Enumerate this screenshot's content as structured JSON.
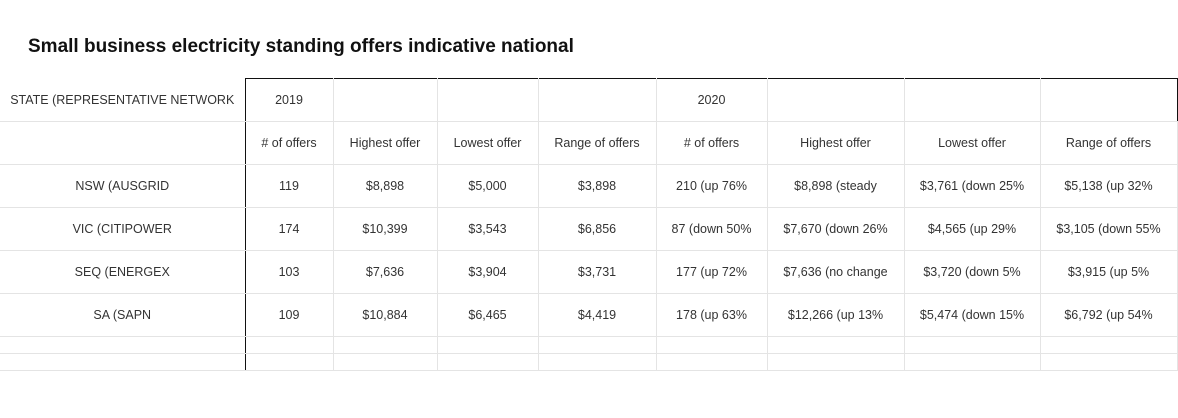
{
  "title": "Small business electricity standing offers indicative national",
  "table": {
    "header_row": [
      "STATE (REPRESENTATIVE NETWORK",
      "2019",
      "",
      "",
      "",
      "2020",
      "",
      "",
      ""
    ],
    "subheader_row": [
      "",
      "# of offers",
      "Highest offer",
      "Lowest offer",
      "Range of offers",
      "# of offers",
      "Highest offer",
      "Lowest offer",
      "Range of offers"
    ],
    "rows": [
      [
        "NSW (AUSGRID",
        "119",
        "$8,898",
        "$5,000",
        "$3,898",
        "210 (up 76%",
        "$8,898 (steady",
        "$3,761 (down 25%",
        "$5,138 (up 32%"
      ],
      [
        "VIC (CITIPOWER",
        "174",
        "$10,399",
        "$3,543",
        "$6,856",
        "87 (down 50%",
        "$7,670 (down 26%",
        "$4,565 (up 29%",
        "$3,105 (down 55%"
      ],
      [
        "SEQ (ENERGEX",
        "103",
        "$7,636",
        "$3,904",
        "$3,731",
        "177 (up 72%",
        "$7,636 (no change",
        "$3,720 (down 5%",
        "$3,915 (up 5%"
      ],
      [
        "SA (SAPN",
        "109",
        "$10,884",
        "$6,465",
        "$4,419",
        "178 (up 63%",
        "$12,266 (up 13%",
        "$5,474 (down 15%",
        "$6,792 (up 54%"
      ]
    ]
  }
}
